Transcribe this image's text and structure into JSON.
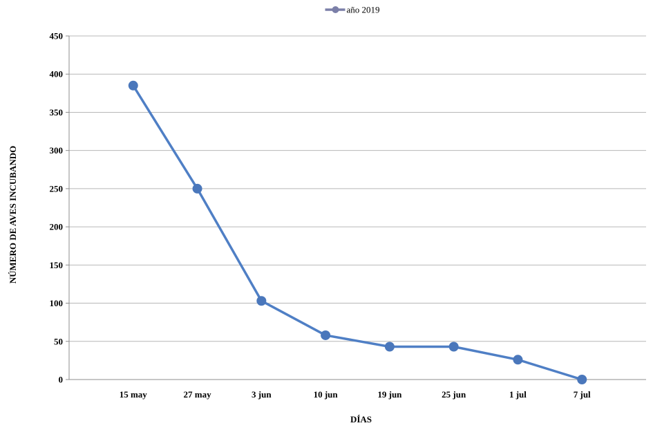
{
  "chart_data": {
    "type": "line",
    "categories": [
      "15 may",
      "27 may",
      "3 jun",
      "10 jun",
      "19 jun",
      "25 jun",
      "1 jul",
      "7 jul"
    ],
    "series": [
      {
        "name": "año 2019",
        "values": [
          385,
          250,
          103,
          58,
          43,
          43,
          26,
          0
        ],
        "color": "#4F7FC5",
        "marker_color": "#4A77BB"
      }
    ],
    "xlabel": "DÍAS",
    "ylabel": "NÚMERO DE AVES INCUBANDO",
    "ylim": [
      0,
      450
    ],
    "yticks": [
      0,
      50,
      100,
      150,
      200,
      250,
      300,
      350,
      400,
      450
    ],
    "grid": true,
    "legend": "top-center",
    "legend_color": "#7B7FA8"
  }
}
